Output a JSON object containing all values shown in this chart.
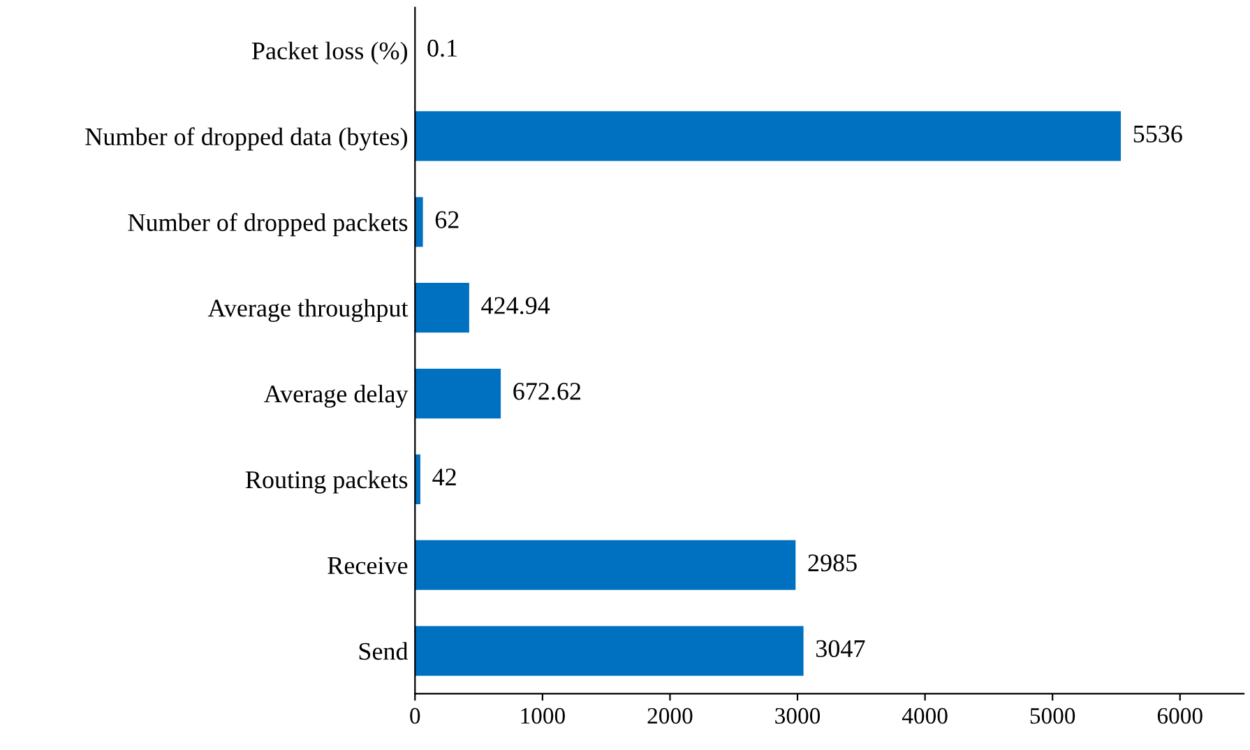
{
  "chart_data": {
    "type": "bar",
    "orientation": "horizontal",
    "categories": [
      "Packet loss (%)",
      "Number of dropped data (bytes)",
      "Number of dropped packets",
      "Average throughput",
      "Average delay",
      "Routing packets",
      "Receive",
      "Send"
    ],
    "values": [
      0.1,
      5536,
      62,
      424.94,
      672.62,
      42,
      2985,
      3047
    ],
    "color": "#0070c0",
    "xlim": [
      0,
      6500
    ],
    "xticks": [
      0,
      1000,
      2000,
      3000,
      4000,
      5000,
      6000
    ],
    "grid": false,
    "data_labels": true
  }
}
